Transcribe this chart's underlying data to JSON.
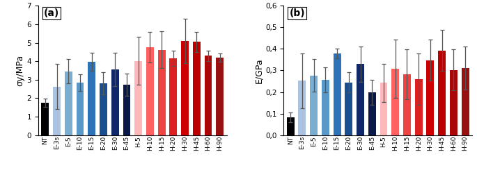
{
  "categories": [
    "NT",
    "E-3s",
    "E-5",
    "E-10",
    "E-15",
    "E-20",
    "E-30",
    "E-45",
    "H-5",
    "H-10",
    "H-15",
    "H-20",
    "H-30",
    "H-45",
    "H-60",
    "H-90"
  ],
  "sigma_values": [
    1.75,
    2.62,
    3.46,
    2.85,
    3.97,
    2.8,
    3.57,
    2.72,
    4.02,
    4.76,
    4.62,
    4.15,
    5.1,
    5.04,
    4.29,
    4.2
  ],
  "sigma_errors": [
    0.22,
    1.22,
    0.65,
    0.45,
    0.5,
    0.6,
    0.9,
    0.6,
    1.3,
    0.82,
    1.0,
    0.42,
    1.2,
    0.55,
    0.28,
    0.22
  ],
  "E_values": [
    0.083,
    0.252,
    0.277,
    0.256,
    0.378,
    0.245,
    0.33,
    0.2,
    0.242,
    0.308,
    0.282,
    0.26,
    0.348,
    0.393,
    0.302,
    0.312
  ],
  "E_errors": [
    0.022,
    0.128,
    0.075,
    0.058,
    0.022,
    0.048,
    0.082,
    0.058,
    0.088,
    0.135,
    0.115,
    0.12,
    0.095,
    0.095,
    0.095,
    0.1
  ],
  "bar_colors": [
    "#000000",
    "#abc2e0",
    "#7aaed0",
    "#5a98c8",
    "#2e72b8",
    "#1a4f90",
    "#102868",
    "#0a1848",
    "#ffb8ba",
    "#ff6060",
    "#ee4444",
    "#dd2020",
    "#cc0000",
    "#bb0000",
    "#aa0808",
    "#991010"
  ],
  "sigma_ylabel": "σy/MPa",
  "E_ylabel": "E/GPa",
  "sigma_ylim": [
    0,
    7
  ],
  "sigma_yticks": [
    0,
    1,
    2,
    3,
    4,
    5,
    6,
    7
  ],
  "E_ylim": [
    0,
    0.6
  ],
  "E_yticks": [
    0,
    0.1,
    0.2,
    0.3,
    0.4,
    0.5,
    0.6
  ],
  "label_a": "(a)",
  "label_b": "(b)"
}
